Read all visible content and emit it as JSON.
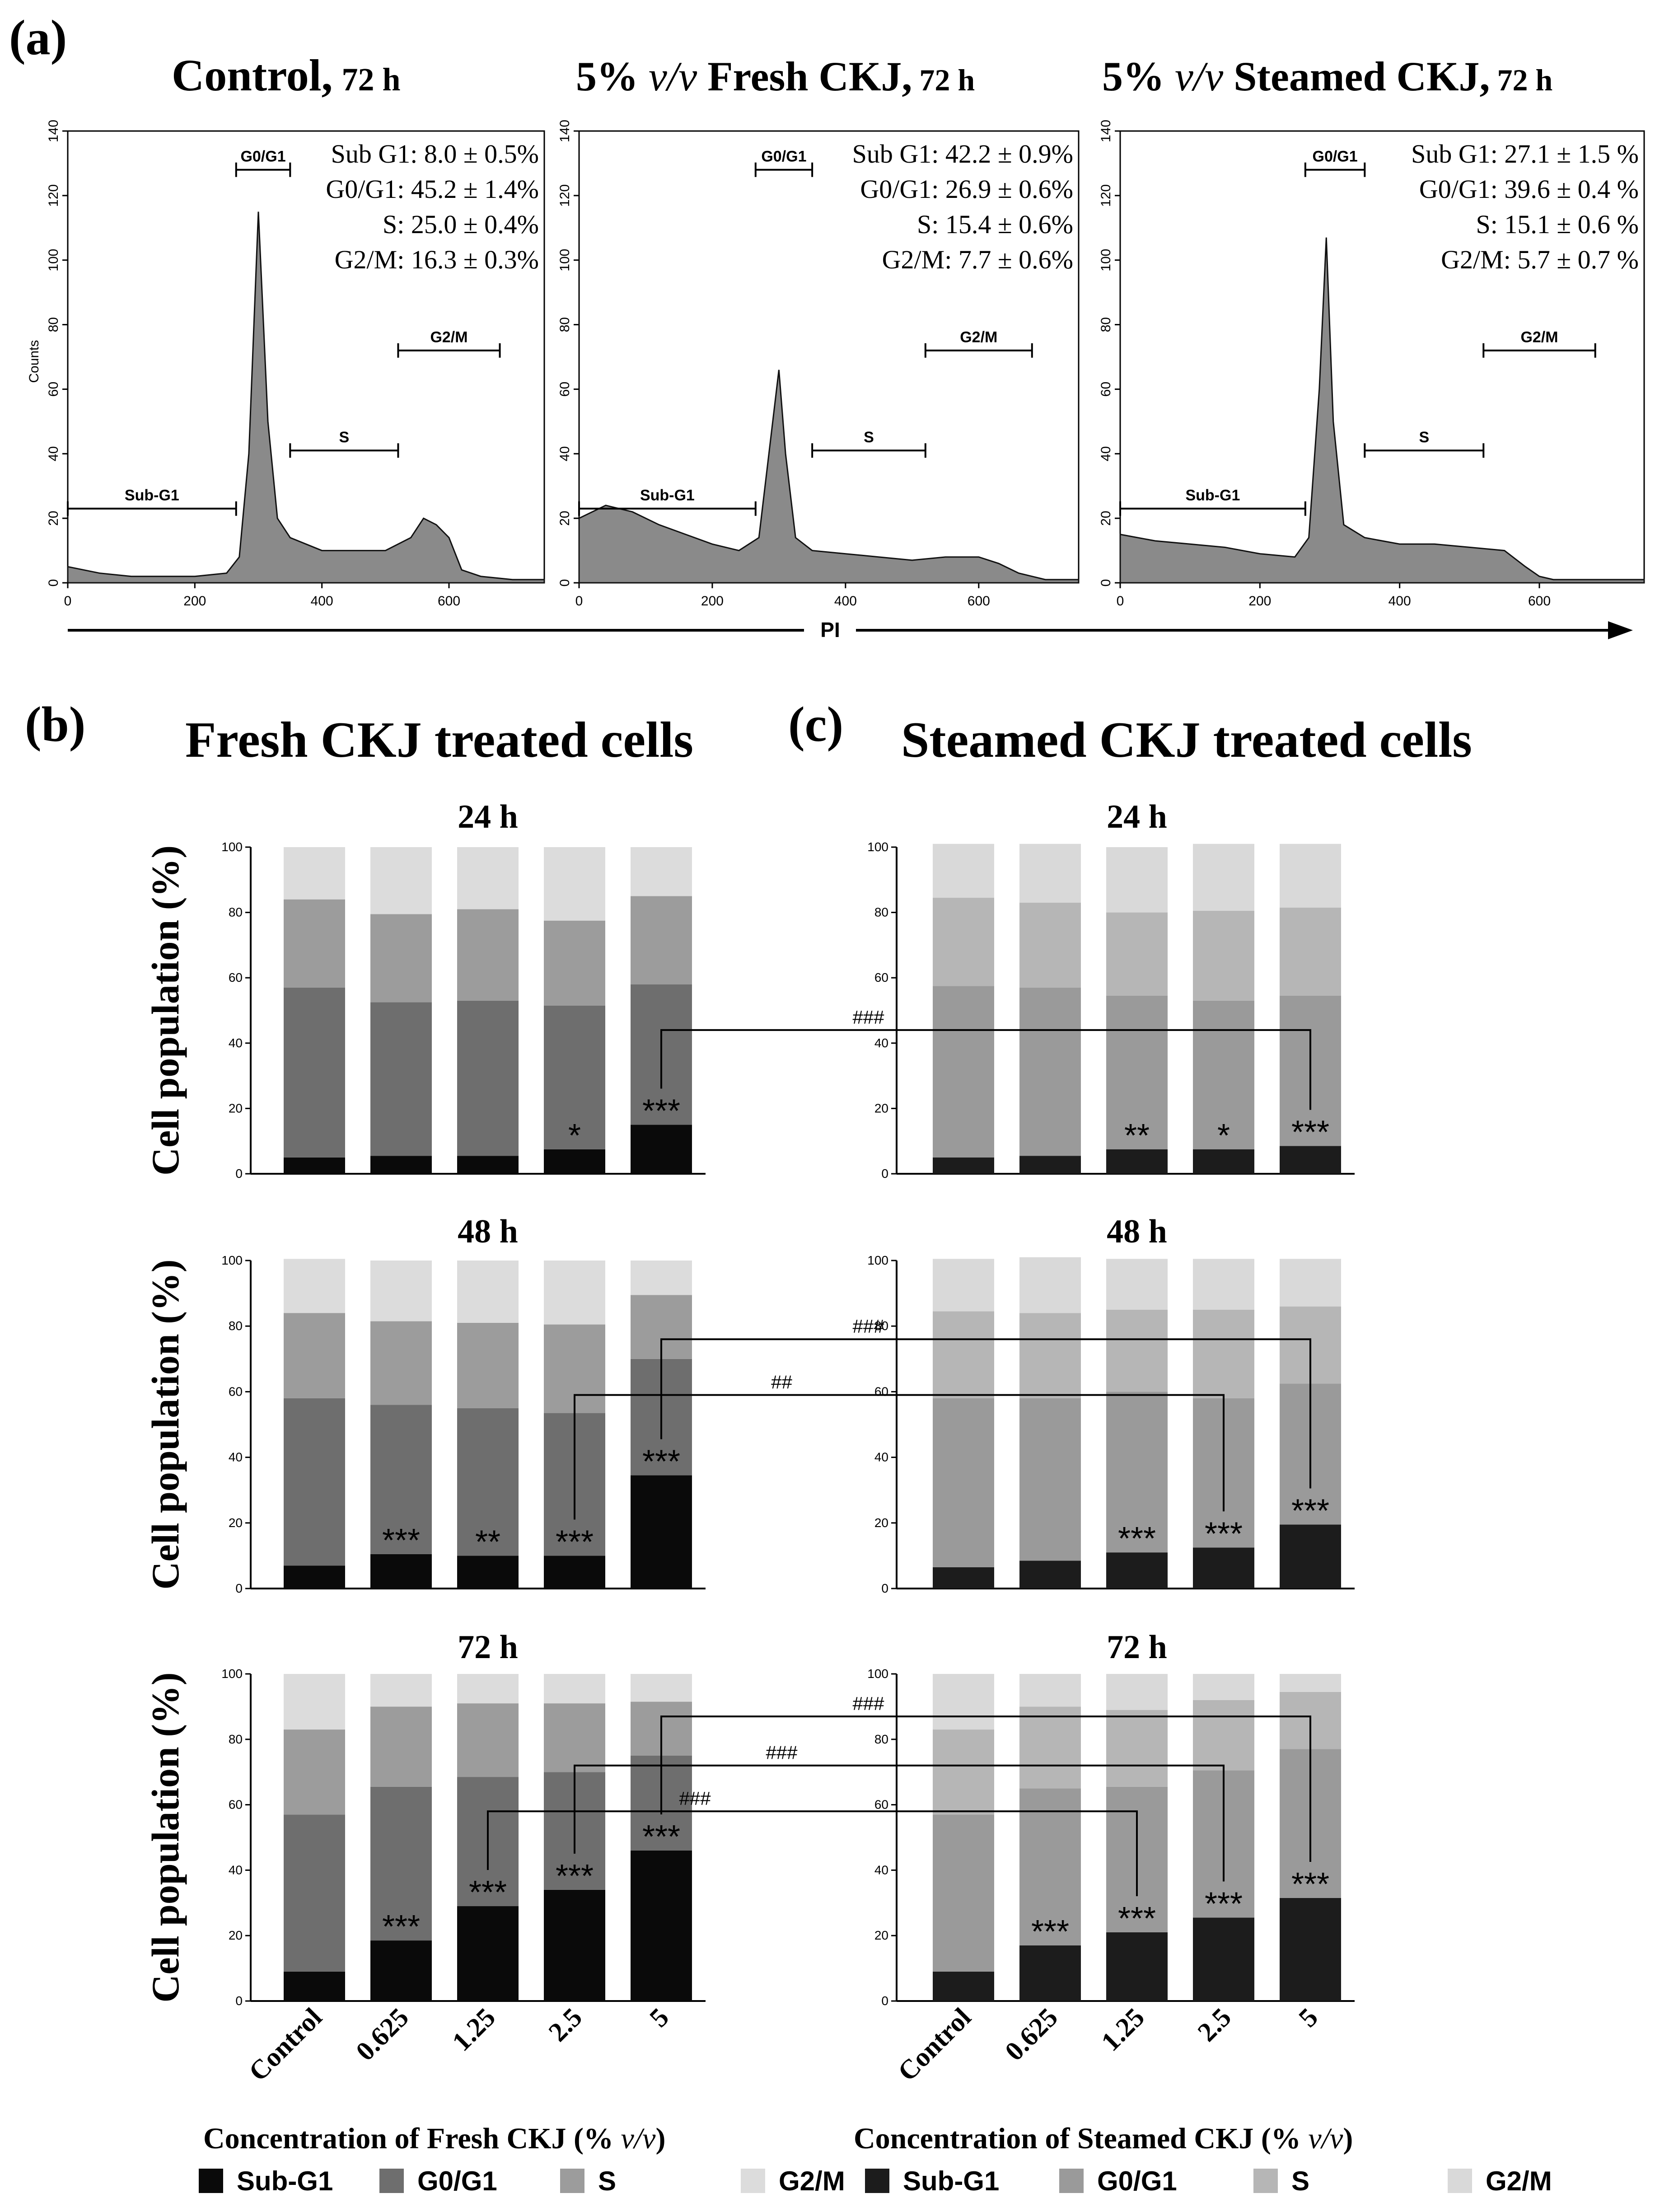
{
  "panel_labels": {
    "a": "(a)",
    "b": "(b)",
    "c": "(c)"
  },
  "histograms": [
    {
      "title_main": "Control,",
      "title_pre": "",
      "title_italic": "",
      "title_suffix": "",
      "title_time": "72 h",
      "stats": [
        "Sub G1: 8.0 ± 0.5%",
        "G0/G1: 45.2 ± 1.4%",
        "S: 25.0 ± 0.4%",
        "G2/M: 16.3 ± 0.3%"
      ],
      "ylabel": "Counts",
      "yticks": [
        "0",
        "20",
        "40",
        "60",
        "80",
        "100",
        "120",
        "140"
      ],
      "xticks": [
        "0",
        "200",
        "400",
        "600"
      ],
      "gates": [
        "Sub-G1",
        "G0/G1",
        "S",
        "G2/M"
      ]
    },
    {
      "title_main": "",
      "title_pre": "5% ",
      "title_italic": "v/v",
      "title_suffix": " Fresh CKJ,",
      "title_time": "72 h",
      "stats": [
        "Sub G1: 42.2 ± 0.9%",
        "G0/G1: 26.9 ± 0.6%",
        "S: 15.4 ± 0.6%",
        "G2/M: 7.7 ± 0.6%"
      ],
      "ylabel": "",
      "yticks": [
        "0",
        "20",
        "40",
        "60",
        "80",
        "100",
        "120",
        "140"
      ],
      "xticks": [
        "0",
        "200",
        "400",
        "600"
      ],
      "gates": [
        "Sub-G1",
        "G0/G1",
        "S",
        "G2/M"
      ]
    },
    {
      "title_main": "",
      "title_pre": "5% ",
      "title_italic": "v/v",
      "title_suffix": " Steamed CKJ,",
      "title_time": "72 h",
      "stats": [
        "Sub G1: 27.1 ± 1.5 %",
        "G0/G1: 39.6 ± 0.4 %",
        "S: 15.1 ± 0.6 %",
        "G2/M: 5.7 ± 0.7 %"
      ],
      "ylabel": "",
      "yticks": [
        "0",
        "20",
        "40",
        "60",
        "80",
        "100",
        "120",
        "140"
      ],
      "xticks": [
        "0",
        "200",
        "400",
        "600"
      ],
      "gates": [
        "Sub-G1",
        "G0/G1",
        "S",
        "G2/M"
      ]
    }
  ],
  "pi_axis_label": "PI",
  "fresh_title": "Fresh CKJ treated cells",
  "steamed_title": "Steamed CKJ treated cells",
  "bar_ylabel": "Cell population (%)",
  "bar_yticks": [
    "0",
    "20",
    "40",
    "60",
    "80",
    "100"
  ],
  "categories": [
    "Control",
    "0.625",
    "1.25",
    "2.5",
    "5"
  ],
  "fresh_xlabel_pre": "Concentration of Fresh CKJ (% ",
  "steamed_xlabel_pre": "Concentration of Steamed CKJ  (% ",
  "xlabel_italic": "v/v",
  "xlabel_post": ")",
  "legend_labels": [
    "Sub-G1",
    "G0/G1",
    "S",
    "G2/M"
  ],
  "fresh_colors": [
    "#0a0a0a",
    "#6e6e6e",
    "#9c9c9c",
    "#dcdcdc"
  ],
  "steamed_colors": [
    "#1c1c1c",
    "#9a9a9a",
    "#b6b6b6",
    "#d9d9d9"
  ],
  "chart_data": [
    {
      "type": "area",
      "title": "Control, 72 h",
      "ylabel": "Counts",
      "xlabel": "PI",
      "xlim": [
        0,
        750
      ],
      "ylim": [
        0,
        140
      ],
      "series": [
        {
          "x": [
            0,
            50,
            100,
            150,
            200,
            250,
            270,
            285,
            300,
            315,
            330,
            350,
            400,
            450,
            500,
            540,
            560,
            580,
            600,
            620,
            650,
            700,
            750
          ],
          "values": [
            5,
            3,
            2,
            2,
            2,
            3,
            8,
            40,
            115,
            50,
            20,
            14,
            10,
            10,
            10,
            14,
            20,
            18,
            14,
            4,
            2,
            1,
            1
          ]
        }
      ]
    },
    {
      "type": "area",
      "title": "5% v/v Fresh CKJ, 72 h",
      "xlabel": "PI",
      "xlim": [
        0,
        750
      ],
      "ylim": [
        0,
        140
      ],
      "series": [
        {
          "x": [
            0,
            40,
            80,
            120,
            160,
            200,
            240,
            270,
            285,
            300,
            310,
            325,
            350,
            400,
            450,
            500,
            550,
            600,
            630,
            660,
            700,
            750
          ],
          "values": [
            20,
            24,
            22,
            18,
            15,
            12,
            10,
            14,
            40,
            66,
            40,
            14,
            10,
            9,
            8,
            7,
            8,
            8,
            6,
            3,
            1,
            1
          ]
        }
      ]
    },
    {
      "type": "area",
      "title": "5% v/v Steamed CKJ, 72 h",
      "xlabel": "PI",
      "xlim": [
        0,
        750
      ],
      "ylim": [
        0,
        140
      ],
      "series": [
        {
          "x": [
            0,
            50,
            100,
            150,
            200,
            250,
            270,
            285,
            295,
            305,
            320,
            350,
            400,
            450,
            500,
            550,
            580,
            600,
            620,
            650,
            700,
            750
          ],
          "values": [
            15,
            13,
            12,
            11,
            9,
            8,
            14,
            60,
            107,
            50,
            18,
            14,
            12,
            12,
            11,
            10,
            5,
            2,
            1,
            1,
            1,
            1
          ]
        }
      ]
    },
    {
      "type": "bar",
      "title": "Fresh CKJ treated cells — 24 h",
      "xlabel": "Concentration of Fresh CKJ (% v/v)",
      "ylabel": "Cell population (%)",
      "ylim": [
        0,
        100
      ],
      "categories": [
        "Control",
        "0.625",
        "1.25",
        "2.5",
        "5"
      ],
      "series": [
        {
          "name": "Sub-G1",
          "values": [
            5,
            5.5,
            5.5,
            7.5,
            15
          ]
        },
        {
          "name": "G0/G1",
          "values": [
            52,
            47,
            47.5,
            44,
            43
          ]
        },
        {
          "name": "S",
          "values": [
            27,
            27,
            28,
            26,
            27
          ]
        },
        {
          "name": "G2/M",
          "values": [
            16,
            20.5,
            19,
            22.5,
            15
          ]
        }
      ],
      "annotations": [
        "",
        "",
        "",
        "*",
        "***"
      ]
    },
    {
      "type": "bar",
      "title": "Fresh CKJ treated cells — 48 h",
      "xlabel": "Concentration of Fresh CKJ (% v/v)",
      "ylabel": "Cell population (%)",
      "ylim": [
        0,
        100
      ],
      "categories": [
        "Control",
        "0.625",
        "1.25",
        "2.5",
        "5"
      ],
      "series": [
        {
          "name": "Sub-G1",
          "values": [
            7,
            10.5,
            10,
            10,
            34.5
          ]
        },
        {
          "name": "G0/G1",
          "values": [
            51,
            45.5,
            45,
            43.5,
            35.5
          ]
        },
        {
          "name": "S",
          "values": [
            26,
            25.5,
            26,
            27,
            19.5
          ]
        },
        {
          "name": "G2/M",
          "values": [
            16.5,
            18.5,
            19,
            19.5,
            10.5
          ]
        }
      ],
      "annotations": [
        "",
        "***",
        "**",
        "***",
        "***"
      ]
    },
    {
      "type": "bar",
      "title": "Fresh CKJ treated cells — 72 h",
      "xlabel": "Concentration of Fresh CKJ (% v/v)",
      "ylabel": "Cell population (%)",
      "ylim": [
        0,
        100
      ],
      "categories": [
        "Control",
        "0.625",
        "1.25",
        "2.5",
        "5"
      ],
      "series": [
        {
          "name": "Sub-G1",
          "values": [
            9,
            18.5,
            29,
            34,
            46
          ]
        },
        {
          "name": "G0/G1",
          "values": [
            48,
            47,
            39.5,
            36,
            29
          ]
        },
        {
          "name": "S",
          "values": [
            26,
            24.5,
            22.5,
            21,
            16.5
          ]
        },
        {
          "name": "G2/M",
          "values": [
            17,
            10,
            9,
            9,
            8.5
          ]
        }
      ],
      "annotations": [
        "",
        "***",
        "***",
        "***",
        "***"
      ]
    },
    {
      "type": "bar",
      "title": "Steamed CKJ treated cells — 24 h",
      "xlabel": "Concentration of Steamed CKJ (% v/v)",
      "ylabel": "Cell population (%)",
      "ylim": [
        0,
        100
      ],
      "categories": [
        "Control",
        "0.625",
        "1.25",
        "2.5",
        "5"
      ],
      "series": [
        {
          "name": "Sub-G1",
          "values": [
            5,
            5.5,
            7.5,
            7.5,
            8.5
          ]
        },
        {
          "name": "G0/G1",
          "values": [
            52.5,
            51.5,
            47,
            45.5,
            46
          ]
        },
        {
          "name": "S",
          "values": [
            27,
            26,
            25.5,
            27.5,
            27
          ]
        },
        {
          "name": "G2/M",
          "values": [
            16.5,
            18,
            20,
            20.5,
            19.5
          ]
        }
      ],
      "annotations": [
        "",
        "",
        "**",
        "*",
        "***"
      ]
    },
    {
      "type": "bar",
      "title": "Steamed CKJ treated cells — 48 h",
      "xlabel": "Concentration of Steamed CKJ (% v/v)",
      "ylabel": "Cell population (%)",
      "ylim": [
        0,
        100
      ],
      "categories": [
        "Control",
        "0.625",
        "1.25",
        "2.5",
        "5"
      ],
      "series": [
        {
          "name": "Sub-G1",
          "values": [
            6.5,
            8.5,
            11,
            12.5,
            19.5
          ]
        },
        {
          "name": "G0/G1",
          "values": [
            51.5,
            49.5,
            49,
            45.5,
            43
          ]
        },
        {
          "name": "S",
          "values": [
            26.5,
            26,
            25,
            27,
            23.5
          ]
        },
        {
          "name": "G2/M",
          "values": [
            16,
            17,
            15.5,
            15.5,
            14.5
          ]
        }
      ],
      "annotations": [
        "",
        "",
        "***",
        "***",
        "***"
      ]
    },
    {
      "type": "bar",
      "title": "Steamed CKJ treated cells — 72 h",
      "xlabel": "Concentration of Steamed CKJ (% v/v)",
      "ylabel": "Cell population (%)",
      "ylim": [
        0,
        100
      ],
      "categories": [
        "Control",
        "0.625",
        "1.25",
        "2.5",
        "5"
      ],
      "series": [
        {
          "name": "Sub-G1",
          "values": [
            9,
            17,
            21,
            25.5,
            31.5
          ]
        },
        {
          "name": "G0/G1",
          "values": [
            48,
            48,
            44.5,
            45,
            45.5
          ]
        },
        {
          "name": "S",
          "values": [
            26,
            25,
            23.5,
            21.5,
            17.5
          ]
        },
        {
          "name": "G2/M",
          "values": [
            17,
            10,
            11,
            8,
            5.5
          ]
        }
      ],
      "annotations": [
        "",
        "***",
        "***",
        "***",
        "***"
      ]
    }
  ],
  "bar_panels": [
    {
      "time": "24 h",
      "brackets": [
        {
          "from": 4,
          "to": 4,
          "label": "###"
        }
      ]
    },
    {
      "time": "48 h",
      "brackets": [
        {
          "from": 4,
          "to": 4,
          "label": "###"
        },
        {
          "from": 3,
          "to": 3,
          "label": "##"
        }
      ]
    },
    {
      "time": "72 h",
      "brackets": [
        {
          "from": 4,
          "to": 4,
          "label": "###"
        },
        {
          "from": 3,
          "to": 3,
          "label": "###"
        },
        {
          "from": 2,
          "to": 2,
          "label": "###"
        }
      ]
    }
  ]
}
